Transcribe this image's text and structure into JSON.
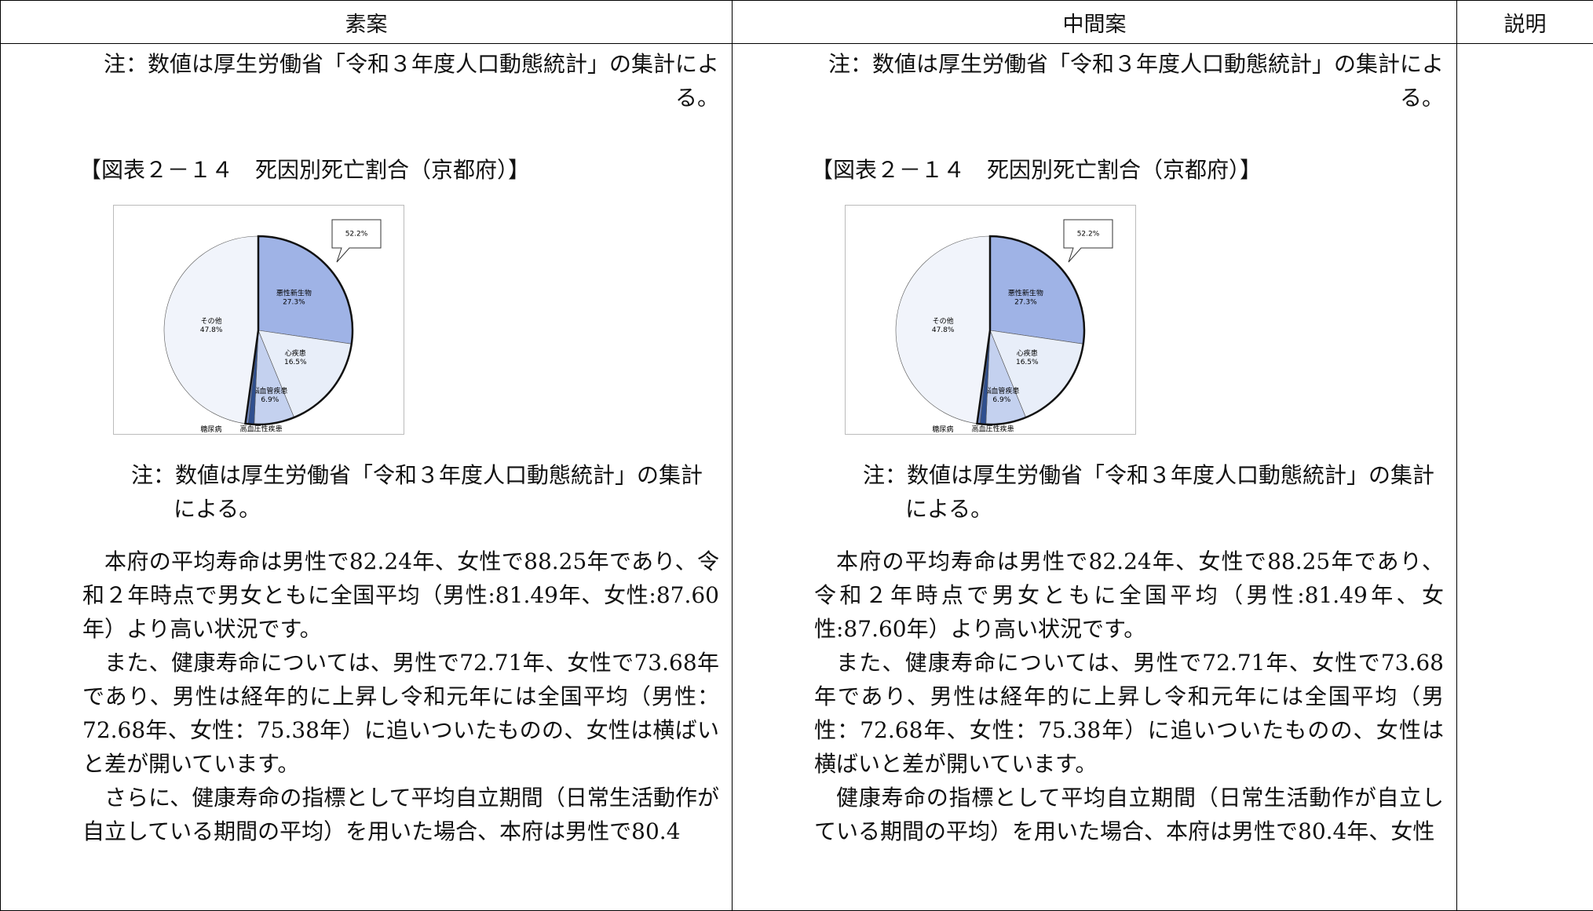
{
  "table": {
    "headers": [
      "素案",
      "中間案",
      "説明"
    ],
    "cells": [
      {
        "note_top": "注：数値は厚生労働省「令和３年度人口動態統計」の集計による。",
        "figure_title": "【図表２－１４　死因別死亡割合（京都府）】",
        "note": "注：数値は厚生労働省「令和３年度人口動態統計」の集計による。",
        "paragraphs": [
          "本府の平均寿命は男性で82.24年、女性で88.25年であり、令和２年時点で男女ともに全国平均（男性:81.49年、女性:87.60年）より高い状況です。",
          "また、健康寿命については、男性で72.71年、女性で73.68年であり、男性は経年的に上昇し令和元年には全国平均（男性：72.68年、女性：75.38年）に追いついたものの、女性は横ばいと差が開いています。",
          "さらに、健康寿命の指標として平均自立期間（日常生活動作が自立している期間の平均）を用いた場合、本府は男性で80.4"
        ]
      },
      {
        "note_top": "注：数値は厚生労働省「令和３年度人口動態統計」の集計による。",
        "figure_title": "【図表２－１４　死因別死亡割合（京都府）】",
        "note": "注：数値は厚生労働省「令和３年度人口動態統計」の集計による。",
        "paragraphs": [
          "本府の平均寿命は男性で82.24年、女性で88.25年であり、令和２年時点で男女ともに全国平均（男性:81.49年、女性:87.60年）より高い状況です。",
          "また、健康寿命については、男性で72.71年、女性で73.68年であり、男性は経年的に上昇し令和元年には全国平均（男性：72.68年、女性：75.38年）に追いついたものの、女性は横ばいと差が開いています。",
          "健康寿命の指標として平均自立期間（日常生活動作が自立している期間の平均）を用いた場合、本府は男性で80.4年、女性"
        ]
      }
    ]
  },
  "chart_data": [
    {
      "type": "pie",
      "categories": [
        "悪性新生物",
        "心疾患",
        "脳血管疾患",
        "糖尿病",
        "高血圧性疾患",
        "その他"
      ],
      "values": [
        27.3,
        16.5,
        6.9,
        1.0,
        0.5,
        47.8
      ],
      "value_labels": [
        "27.3%",
        "16.5%",
        "6.9%",
        "1.0%",
        "0.5%",
        "47.8%"
      ],
      "colors": [
        "#9fb3e6",
        "#e8eef9",
        "#c4d1ef",
        "#2f4f8f",
        "#6f88c4",
        "#f1f4fb"
      ],
      "callout": {
        "value": 52.2,
        "label": "52.2%"
      }
    },
    {
      "type": "pie",
      "categories": [
        "悪性新生物",
        "心疾患",
        "脳血管疾患",
        "糖尿病",
        "高血圧性疾患",
        "その他"
      ],
      "values": [
        27.3,
        16.5,
        6.9,
        1.0,
        0.5,
        47.8
      ],
      "value_labels": [
        "27.3%",
        "16.5%",
        "6.9%",
        "1.0%",
        "0.5%",
        "47.8%"
      ],
      "colors": [
        "#9fb3e6",
        "#e8eef9",
        "#c4d1ef",
        "#2f4f8f",
        "#6f88c4",
        "#f1f4fb"
      ],
      "callout": {
        "value": 52.2,
        "label": "52.2%"
      }
    }
  ]
}
